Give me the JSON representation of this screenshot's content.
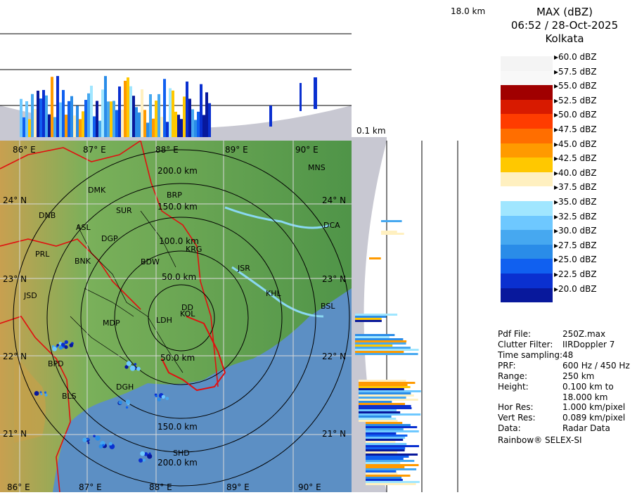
{
  "product": {
    "title": "MAX (dBZ)",
    "datetime": "06:52 / 28-Oct-2025",
    "station": "Kolkata"
  },
  "height_labels": {
    "top": "18.0 km",
    "bottom": "0.1 km"
  },
  "legend": [
    {
      "label": "60.0 dBZ",
      "color": "#f4f4f4"
    },
    {
      "label": "57.5 dBZ",
      "color": "#f8f8f8"
    },
    {
      "label": "55.0 dBZ",
      "color": "#a00000"
    },
    {
      "label": "52.5 dBZ",
      "color": "#d81a00"
    },
    {
      "label": "50.0 dBZ",
      "color": "#ff3c00"
    },
    {
      "label": "47.5 dBZ",
      "color": "#ff6e00"
    },
    {
      "label": "45.0 dBZ",
      "color": "#ff9a00"
    },
    {
      "label": "42.5 dBZ",
      "color": "#ffc800"
    },
    {
      "label": "40.0 dBZ",
      "color": "#fff0c0"
    },
    {
      "label": "37.5 dBZ",
      "color": "#ffffff"
    },
    {
      "label": "35.0 dBZ",
      "color": "#a0e6ff"
    },
    {
      "label": "32.5 dBZ",
      "color": "#6ec8ff"
    },
    {
      "label": "30.0 dBZ",
      "color": "#46a8f0"
    },
    {
      "label": "27.5 dBZ",
      "color": "#2a8ce8"
    },
    {
      "label": "25.0 dBZ",
      "color": "#1060f0"
    },
    {
      "label": "22.5 dBZ",
      "color": "#0a30d0"
    },
    {
      "label": "20.0 dBZ",
      "color": "#08189c"
    }
  ],
  "info": [
    {
      "key": "Pdf File:",
      "value": "250Z.max"
    },
    {
      "key": "Clutter Filter:",
      "value": "IIRDoppler 7"
    },
    {
      "key": "Time sampling:",
      "value": "48"
    },
    {
      "key": "PRF:",
      "value": "600 Hz / 450 Hz"
    },
    {
      "key": "Range:",
      "value": "250 km"
    },
    {
      "key": "Height:",
      "value": "0.100 km to\n18.000 km"
    },
    {
      "key": "Hor Res:",
      "value": "1.000 km/pixel"
    },
    {
      "key": "Vert Res:",
      "value": "0.089 km/pixel"
    },
    {
      "key": "Data:",
      "value": "Radar Data"
    }
  ],
  "footer": "Rainbow® SELEX-SI",
  "map": {
    "longitudes": [
      "86° E",
      "87° E",
      "88° E",
      "89° E",
      "90° E"
    ],
    "latitudes": [
      "24° N",
      "23° N",
      "22° N",
      "21° N"
    ],
    "range_rings": [
      "50.0 km",
      "100.0 km",
      "150.0 km",
      "200.0 km"
    ],
    "cities": [
      "MNS",
      "DMK",
      "BRP",
      "DNB",
      "SUR",
      "DCA",
      "ASL",
      "DGP",
      "KRG",
      "PRL",
      "BNK",
      "BDW",
      "JSR",
      "KHL",
      "JSD",
      "DD",
      "BSL",
      "MDP",
      "KOL",
      "LDH",
      "BPD",
      "DGH",
      "BLS",
      "SHD"
    ]
  },
  "colors": {
    "land": "#5e9c52",
    "sea": "#5c8fc4",
    "border": "#e01010",
    "panel_bg": "#ffffff",
    "cone": "#c8c8d2"
  }
}
